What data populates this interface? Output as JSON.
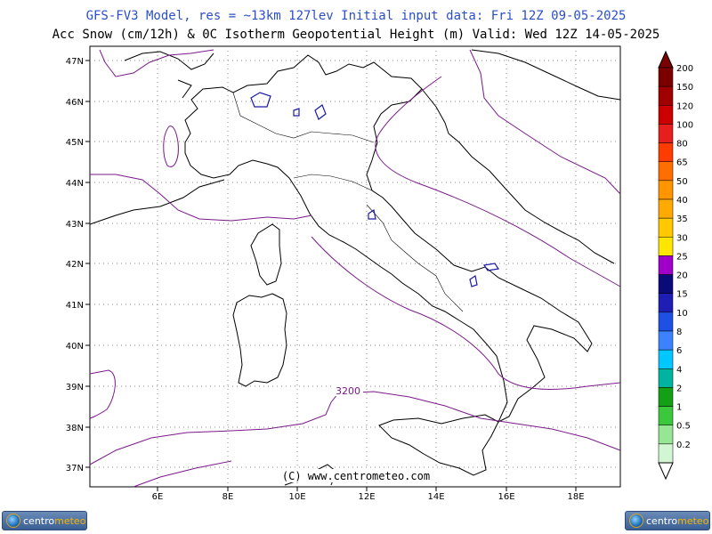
{
  "header": {
    "line1": "GFS-FV3 Model, res = ~13km 127lev   Initial input data: Fri 12Z 09-05-2025",
    "line2": "Acc Snow (cm/12h) & 0C Isotherm Geopotential Height (m)  Valid: Wed 12Z 14-05-2025"
  },
  "map": {
    "lat_labels": [
      "47N",
      "46N",
      "45N",
      "44N",
      "43N",
      "42N",
      "41N",
      "40N",
      "39N",
      "38N",
      "37N"
    ],
    "lon_labels": [
      "6E",
      "8E",
      "10E",
      "12E",
      "14E",
      "16E",
      "18E"
    ],
    "contour_label": "3200",
    "copyright": "(C) www.centrometeo.com",
    "contour_color": "#7a1a8a",
    "snow_color": "#1a1aa8"
  },
  "legend": {
    "labels": [
      "200",
      "150",
      "120",
      "100",
      "80",
      "65",
      "50",
      "40",
      "35",
      "30",
      "25",
      "20",
      "15",
      "10",
      "8",
      "6",
      "4",
      "2",
      "1",
      "0.5",
      "0.2"
    ],
    "colors": [
      "#7a0000",
      "#a00000",
      "#cc0000",
      "#e61e1e",
      "#ff3c00",
      "#ff6e00",
      "#ff9600",
      "#ffaa00",
      "#ffc800",
      "#ffe600",
      "#a000c8",
      "#0a0a78",
      "#1e1eb4",
      "#1e50e6",
      "#3c82ff",
      "#00c8ff",
      "#00b4a0",
      "#14a014",
      "#3cc83c",
      "#96e696",
      "#d2f5d2"
    ]
  },
  "logos": {
    "left": {
      "prefix": "centro",
      "suffix": "meteo"
    },
    "right": {
      "prefix": "centro",
      "suffix": "meteo"
    }
  }
}
